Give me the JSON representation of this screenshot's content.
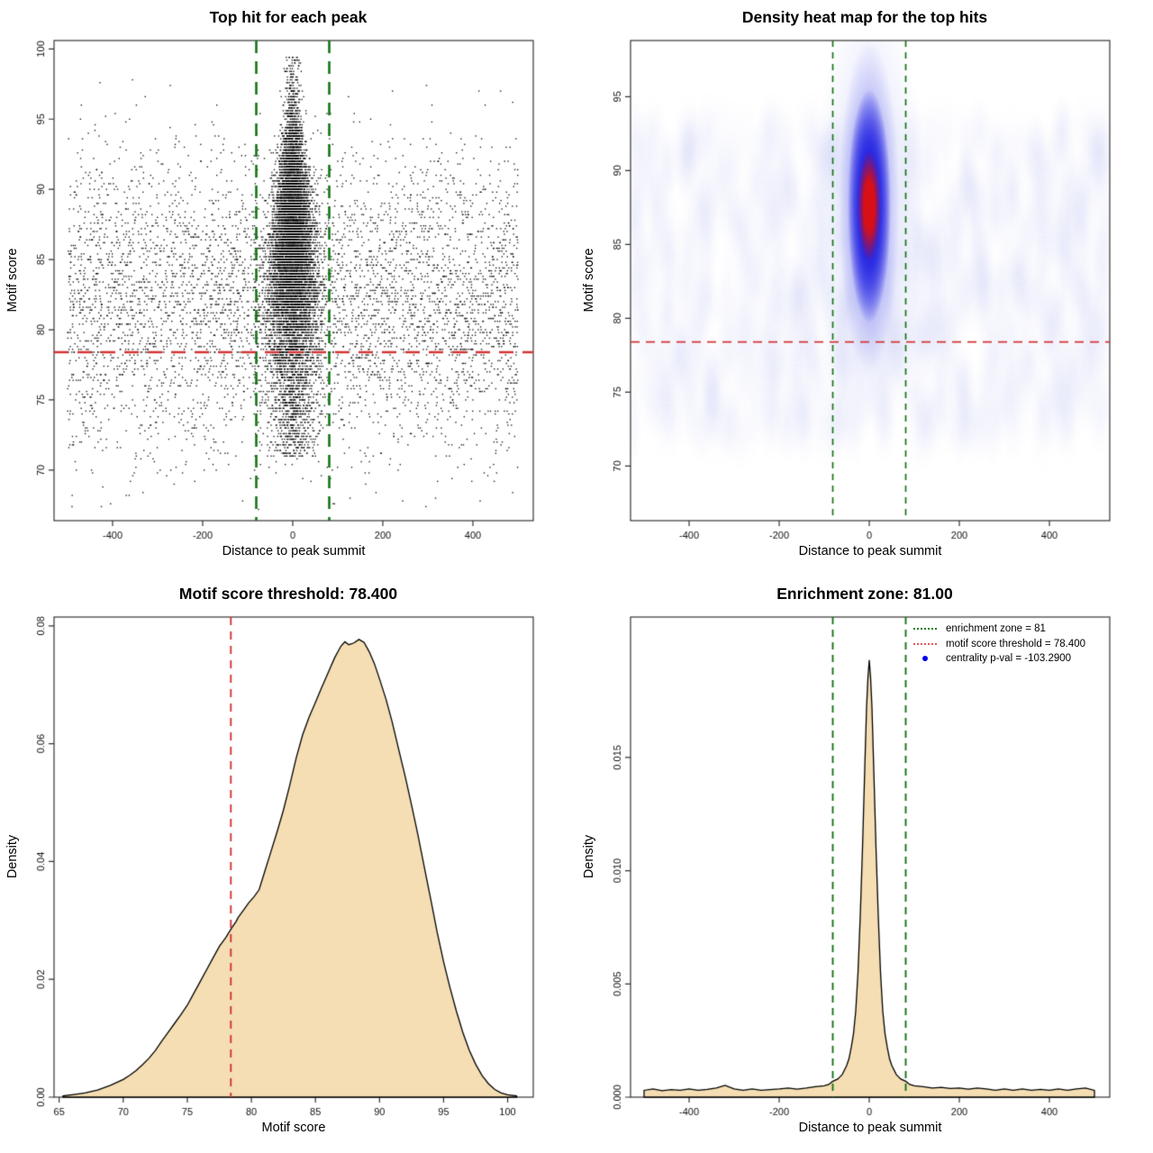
{
  "colors": {
    "wheat_fill": "#F5DEB3",
    "red_dashed": "#D43434",
    "green_dashed": "#157515",
    "legend_red": "#E55A5A",
    "legend_blue": "#0000EE",
    "heat_core_red": "#DD1010",
    "heat_blue": "#2222DF",
    "point_black": "#000000"
  },
  "chart_data": [
    {
      "type": "scatter",
      "title": "Top hit for each peak",
      "xlabel": "Distance to peak summit",
      "ylabel": "Motif score",
      "xlim": [
        -530,
        534
      ],
      "ylim": [
        66.4,
        100.6
      ],
      "x_ticks": [
        -400,
        -200,
        0,
        200,
        400
      ],
      "x_tick_labels": [
        "-400",
        "-200",
        "0",
        "200",
        "400"
      ],
      "y_ticks": [
        70,
        75,
        80,
        85,
        90,
        95,
        100
      ],
      "y_tick_labels": [
        "70",
        "75",
        "80",
        "85",
        "90",
        "95",
        "100"
      ],
      "hline": {
        "value": 78.4,
        "style": "dashed",
        "color_key": "red_dashed"
      },
      "vlines": {
        "values": [
          -81,
          81
        ],
        "style": "dashed",
        "color_key": "green_dashed"
      },
      "points_model": {
        "seed": 1234,
        "background": {
          "n": 5200,
          "x_uniform": [
            -500,
            500
          ],
          "y_mean": 82,
          "y_sd": 5.4,
          "y_clip": [
            67.2,
            97.8
          ]
        },
        "cluster": {
          "n": 9500,
          "y_mean": 86.2,
          "y_sd": 4.6,
          "y_max": 99.4,
          "x_sd_base": 10,
          "x_sd_flare_per_unit": 1.35
        },
        "funnel": {
          "n": 800,
          "y_uniform": [
            71,
            79
          ],
          "x_sd": 26
        },
        "y_quantize": 0.2
      }
    },
    {
      "type": "heatmap",
      "title": "Density heat map for the top hits",
      "xlabel": "Distance to peak summit",
      "ylabel": "Motif score",
      "xlim": [
        -530,
        534
      ],
      "ylim": [
        66.3,
        98.8
      ],
      "x_ticks": [
        -400,
        -200,
        0,
        200,
        400
      ],
      "x_tick_labels": [
        "-400",
        "-200",
        "0",
        "200",
        "400"
      ],
      "y_ticks": [
        70,
        75,
        80,
        85,
        90,
        95
      ],
      "y_tick_labels": [
        "70",
        "75",
        "80",
        "85",
        "90",
        "95"
      ],
      "hline": {
        "value": 78.4,
        "style": "dashed",
        "color_key": "red_dashed"
      },
      "vlines": {
        "values": [
          -81,
          81
        ],
        "style": "dashed",
        "color_key": "green_dashed"
      },
      "hotspot": {
        "x": 0,
        "y_score": 87.6,
        "core_span_scores": [
          84.5,
          91
        ],
        "blue_span_scores": [
          79,
          96.5
        ],
        "faint_span_scores": [
          71,
          98.5
        ]
      }
    },
    {
      "type": "area",
      "title": "Motif score threshold: 78.400",
      "xlabel": "Motif score",
      "ylabel": "Density",
      "xlim": [
        64.6,
        102.0
      ],
      "ylim": [
        0,
        0.0815
      ],
      "x_ticks": [
        65,
        70,
        75,
        80,
        85,
        90,
        95,
        100
      ],
      "x_tick_labels": [
        "65",
        "70",
        "75",
        "80",
        "85",
        "90",
        "95",
        "100"
      ],
      "y_ticks": [
        0,
        0.02,
        0.04,
        0.06,
        0.08
      ],
      "y_tick_labels": [
        "0.00",
        "0.02",
        "0.04",
        "0.06",
        "0.08"
      ],
      "vline_red": {
        "value": 78.4,
        "style": "dashed",
        "color_key": "red_dashed"
      },
      "curve": [
        [
          65.3,
          0.0002
        ],
        [
          66,
          0.0004
        ],
        [
          67,
          0.0007
        ],
        [
          68,
          0.0012
        ],
        [
          69,
          0.002
        ],
        [
          70,
          0.003
        ],
        [
          70.5,
          0.0037
        ],
        [
          71,
          0.0045
        ],
        [
          71.5,
          0.0055
        ],
        [
          72,
          0.0066
        ],
        [
          72.5,
          0.0079
        ],
        [
          73,
          0.0095
        ],
        [
          73.5,
          0.011
        ],
        [
          74,
          0.0125
        ],
        [
          74.5,
          0.014
        ],
        [
          75,
          0.0156
        ],
        [
          75.5,
          0.0176
        ],
        [
          76,
          0.0196
        ],
        [
          76.5,
          0.0216
        ],
        [
          77,
          0.0236
        ],
        [
          77.5,
          0.0256
        ],
        [
          78,
          0.0271
        ],
        [
          78.4,
          0.0285
        ],
        [
          78.8,
          0.0298
        ],
        [
          79,
          0.0306
        ],
        [
          79.4,
          0.0318
        ],
        [
          79.8,
          0.033
        ],
        [
          80.2,
          0.034
        ],
        [
          80.6,
          0.0352
        ],
        [
          81,
          0.038
        ],
        [
          81.5,
          0.0415
        ],
        [
          82,
          0.045
        ],
        [
          82.5,
          0.0487
        ],
        [
          83,
          0.053
        ],
        [
          83.5,
          0.0576
        ],
        [
          84,
          0.0615
        ],
        [
          84.5,
          0.0645
        ],
        [
          85,
          0.067
        ],
        [
          85.5,
          0.0696
        ],
        [
          86,
          0.0721
        ],
        [
          86.5,
          0.0746
        ],
        [
          87,
          0.0766
        ],
        [
          87.3,
          0.0773
        ],
        [
          87.6,
          0.0768
        ],
        [
          88,
          0.0771
        ],
        [
          88.4,
          0.0777
        ],
        [
          88.8,
          0.0772
        ],
        [
          89.2,
          0.0756
        ],
        [
          89.6,
          0.0736
        ],
        [
          90,
          0.071
        ],
        [
          90.5,
          0.0676
        ],
        [
          91,
          0.0636
        ],
        [
          91.5,
          0.059
        ],
        [
          92,
          0.0545
        ],
        [
          92.5,
          0.0496
        ],
        [
          93,
          0.0445
        ],
        [
          93.5,
          0.039
        ],
        [
          94,
          0.0336
        ],
        [
          94.5,
          0.028
        ],
        [
          95,
          0.023
        ],
        [
          95.5,
          0.0186
        ],
        [
          96,
          0.0146
        ],
        [
          96.5,
          0.011
        ],
        [
          97,
          0.008
        ],
        [
          97.5,
          0.0056
        ],
        [
          98,
          0.0037
        ],
        [
          98.5,
          0.0023
        ],
        [
          99,
          0.0013
        ],
        [
          99.5,
          0.0007
        ],
        [
          100,
          0.0004
        ],
        [
          100.7,
          0.0002
        ]
      ]
    },
    {
      "type": "area",
      "title": "Enrichment zone: 81.00",
      "xlabel": "Distance to peak summit",
      "ylabel": "Density",
      "xlim": [
        -530,
        534
      ],
      "ylim": [
        0,
        0.0212
      ],
      "x_ticks": [
        -400,
        -200,
        0,
        200,
        400
      ],
      "x_tick_labels": [
        "-400",
        "-200",
        "0",
        "200",
        "400"
      ],
      "y_ticks": [
        0,
        0.005,
        0.01,
        0.015
      ],
      "y_tick_labels": [
        "0.000",
        "0.005",
        "0.010",
        "0.015"
      ],
      "vlines": {
        "values": [
          -81,
          81
        ],
        "style": "dashed",
        "color_key": "green_dashed"
      },
      "curve": [
        [
          -500,
          0.0003
        ],
        [
          -480,
          0.00036
        ],
        [
          -460,
          0.00028
        ],
        [
          -440,
          0.00033
        ],
        [
          -420,
          0.0003
        ],
        [
          -400,
          0.00036
        ],
        [
          -380,
          0.0003
        ],
        [
          -360,
          0.00034
        ],
        [
          -340,
          0.0004
        ],
        [
          -320,
          0.00052
        ],
        [
          -300,
          0.00036
        ],
        [
          -280,
          0.0003
        ],
        [
          -260,
          0.00036
        ],
        [
          -240,
          0.0003
        ],
        [
          -220,
          0.00033
        ],
        [
          -200,
          0.00036
        ],
        [
          -180,
          0.0004
        ],
        [
          -160,
          0.00035
        ],
        [
          -140,
          0.0004
        ],
        [
          -120,
          0.00046
        ],
        [
          -100,
          0.0005
        ],
        [
          -90,
          0.00056
        ],
        [
          -81,
          0.0007
        ],
        [
          -70,
          0.0008
        ],
        [
          -60,
          0.001
        ],
        [
          -50,
          0.0014
        ],
        [
          -45,
          0.0017
        ],
        [
          -40,
          0.0022
        ],
        [
          -35,
          0.0028
        ],
        [
          -30,
          0.0038
        ],
        [
          -25,
          0.0055
        ],
        [
          -20,
          0.008
        ],
        [
          -15,
          0.011
        ],
        [
          -10,
          0.0145
        ],
        [
          -6,
          0.0172
        ],
        [
          -3,
          0.0185
        ],
        [
          0,
          0.0193
        ],
        [
          3,
          0.0185
        ],
        [
          6,
          0.0172
        ],
        [
          10,
          0.0145
        ],
        [
          15,
          0.011
        ],
        [
          20,
          0.008
        ],
        [
          25,
          0.0055
        ],
        [
          30,
          0.0038
        ],
        [
          35,
          0.0028
        ],
        [
          40,
          0.0022
        ],
        [
          45,
          0.0017
        ],
        [
          50,
          0.0014
        ],
        [
          60,
          0.001
        ],
        [
          70,
          0.0008
        ],
        [
          81,
          0.0007
        ],
        [
          90,
          0.00056
        ],
        [
          100,
          0.0005
        ],
        [
          120,
          0.00046
        ],
        [
          140,
          0.0004
        ],
        [
          160,
          0.00043
        ],
        [
          180,
          0.00038
        ],
        [
          200,
          0.0004
        ],
        [
          220,
          0.00035
        ],
        [
          240,
          0.0004
        ],
        [
          260,
          0.00036
        ],
        [
          280,
          0.0003
        ],
        [
          300,
          0.00036
        ],
        [
          320,
          0.0003
        ],
        [
          340,
          0.00036
        ],
        [
          360,
          0.0003
        ],
        [
          380,
          0.00034
        ],
        [
          400,
          0.0003
        ],
        [
          420,
          0.00036
        ],
        [
          440,
          0.0003
        ],
        [
          460,
          0.00036
        ],
        [
          480,
          0.0004
        ],
        [
          500,
          0.0003
        ]
      ],
      "legend": {
        "items": [
          {
            "swatch": "green-dotted-line",
            "label": "enrichment zone = 81"
          },
          {
            "swatch": "red-dotted-line",
            "label": "motif score threshold = 78.400"
          },
          {
            "swatch": "blue-dot",
            "label": "centrality p-val = -103.2900"
          }
        ]
      }
    }
  ]
}
